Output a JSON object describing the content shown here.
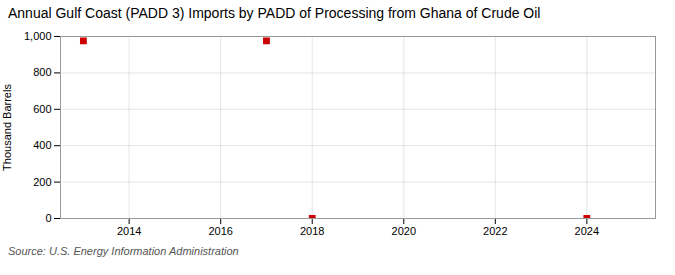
{
  "chart_data": {
    "type": "scatter",
    "title": "Annual Gulf Coast (PADD 3) Imports by PADD of Processing from Ghana of Crude Oil",
    "ylabel": "Thousand Barrels",
    "source": "Source: U.S. Energy Information Administration",
    "x": [
      2013,
      2017,
      2018,
      2024
    ],
    "values": [
      976,
      976,
      0,
      0
    ],
    "color": "#cc0000",
    "marker": "square",
    "xlim": [
      2012.5,
      2025.5
    ],
    "ylim": [
      0,
      1000
    ],
    "xticks": [
      2014,
      2016,
      2018,
      2020,
      2022,
      2024
    ],
    "yticks": [
      0,
      200,
      400,
      600,
      800,
      {
        "value": 1000,
        "label": "1,000"
      }
    ],
    "grid": true
  }
}
